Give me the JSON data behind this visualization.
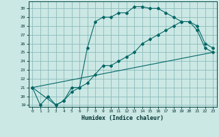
{
  "xlabel": "Humidex (Indice chaleur)",
  "bg_color": "#cce8e4",
  "grid_color": "#88bbbb",
  "line_color": "#006666",
  "xlim": [
    -0.5,
    23.5
  ],
  "ylim": [
    18.8,
    30.8
  ],
  "xticks": [
    0,
    1,
    2,
    3,
    4,
    5,
    6,
    7,
    8,
    9,
    10,
    11,
    12,
    13,
    14,
    15,
    16,
    17,
    18,
    19,
    20,
    21,
    22,
    23
  ],
  "yticks": [
    19,
    20,
    21,
    22,
    23,
    24,
    25,
    26,
    27,
    28,
    29,
    30
  ],
  "line1_x": [
    0,
    1,
    2,
    3,
    4,
    5,
    6,
    7,
    8,
    9,
    10,
    11,
    12,
    13,
    14,
    15,
    16,
    17,
    18,
    19,
    20,
    21,
    22,
    23
  ],
  "line1_y": [
    21,
    19,
    20,
    19,
    19.5,
    21,
    21,
    25.5,
    28.5,
    29,
    29,
    29.5,
    29.5,
    30.2,
    30.2,
    30,
    30,
    29.5,
    29,
    28.5,
    28.5,
    27.5,
    25.5,
    25
  ],
  "line2_x": [
    0,
    3,
    4,
    5,
    6,
    7,
    8,
    9,
    10,
    11,
    12,
    13,
    14,
    15,
    16,
    17,
    18,
    19,
    20,
    21,
    22,
    23
  ],
  "line2_y": [
    21,
    19,
    19.5,
    20.5,
    21,
    21.5,
    22.5,
    23.5,
    23.5,
    24,
    24.5,
    25,
    26,
    26.5,
    27,
    27.5,
    28,
    28.5,
    28.5,
    28,
    26,
    25.5
  ],
  "line3_x": [
    0,
    23
  ],
  "line3_y": [
    21,
    25
  ]
}
